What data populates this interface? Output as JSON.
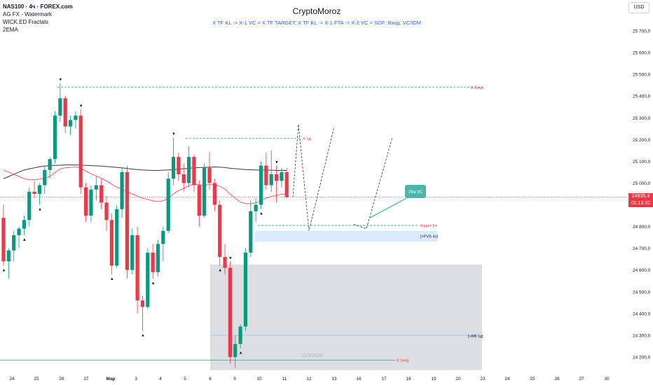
{
  "legend": {
    "symbol": "NAS100 · 4ч · FOREX.com",
    "lines": [
      "AG FX - Watermark",
      "WICK.ED Fractals",
      "2EMA"
    ]
  },
  "header": {
    "title": "CryptoMoroz",
    "subtitle": "X TF KL -> X-1 VC = X TF TARGET; X TF KL -> X-1 FTA -> X-2 VC = SOF; Вход: VC/IDM"
  },
  "currency_button": "USD",
  "price_tag": {
    "price": "24935,4",
    "timer": "01:13:32",
    "color": "#f23645"
  },
  "annotations": {
    "week_high": "X 1нед",
    "day_high": "X 1д",
    "trigger": "trigger 1ч",
    "fvg": "[+FVG 4ч]",
    "rb": "[+RB 1д]",
    "week_low": "X 1нед",
    "callout": "15м VC",
    "watermark_date": "11/3/2026"
  },
  "colors": {
    "up": "#089981",
    "down": "#f23645",
    "ema_long": "#363a45",
    "ema_short": "#f23645",
    "zone": "#787b86",
    "fvg": "#bbd9fb",
    "callout": "#4db6ac"
  },
  "chart_data": {
    "type": "candlestick",
    "symbol": "NAS100",
    "timeframe": "4h",
    "y_axis": {
      "ticks": [
        25700,
        25600,
        25500,
        25400,
        25300,
        25200,
        25100,
        25000,
        24900,
        24800,
        24700,
        24600,
        24500,
        24400,
        24300,
        24200
      ],
      "range": [
        24140,
        25790
      ],
      "decimal_separator": ","
    },
    "x_axis": {
      "ticks": [
        "24",
        "25",
        "26",
        "27",
        "Мар",
        "3",
        "4",
        "5",
        "6",
        "9",
        "10",
        "11",
        "12",
        "13",
        "16",
        "17",
        "18",
        "19",
        "20",
        "23",
        "24",
        "25",
        "26",
        "27",
        "30"
      ]
    },
    "candles": [
      [
        24840,
        24900,
        24620,
        24640
      ],
      [
        24640,
        24700,
        24560,
        24690
      ],
      [
        24690,
        24780,
        24640,
        24760
      ],
      [
        24760,
        24800,
        24700,
        24790
      ],
      [
        24790,
        24850,
        24760,
        24830
      ],
      [
        24830,
        24980,
        24800,
        24960
      ],
      [
        24960,
        25010,
        24930,
        24950
      ],
      [
        24950,
        25000,
        24900,
        24990
      ],
      [
        24990,
        25080,
        24950,
        25060
      ],
      [
        25060,
        25120,
        25020,
        25110
      ],
      [
        25110,
        25330,
        25090,
        25310
      ],
      [
        25310,
        25460,
        25280,
        25390
      ],
      [
        25390,
        25400,
        25230,
        25260
      ],
      [
        25260,
        25310,
        25220,
        25290
      ],
      [
        25290,
        25330,
        25250,
        25310
      ],
      [
        25310,
        25340,
        24950,
        24980
      ],
      [
        24980,
        25000,
        24820,
        24850
      ],
      [
        24850,
        24990,
        24820,
        24970
      ],
      [
        24970,
        25030,
        24920,
        24990
      ],
      [
        24990,
        25020,
        24880,
        24910
      ],
      [
        24910,
        24940,
        24780,
        24830
      ],
      [
        24830,
        24860,
        24580,
        24620
      ],
      [
        24620,
        24900,
        24610,
        24880
      ],
      [
        24880,
        25070,
        24840,
        25050
      ],
      [
        25050,
        25080,
        24560,
        24600
      ],
      [
        24600,
        24790,
        24580,
        24760
      ],
      [
        24760,
        24800,
        24400,
        24460
      ],
      [
        24460,
        24480,
        24320,
        24430
      ],
      [
        24430,
        24700,
        24420,
        24680
      ],
      [
        24680,
        24720,
        24560,
        24590
      ],
      [
        24590,
        24740,
        24570,
        24720
      ],
      [
        24720,
        24800,
        24640,
        24780
      ],
      [
        24780,
        25050,
        24770,
        25020
      ],
      [
        25020,
        25210,
        24990,
        25120
      ],
      [
        25120,
        25140,
        25010,
        25040
      ],
      [
        25040,
        25090,
        24960,
        25000
      ],
      [
        25000,
        25170,
        24980,
        25120
      ],
      [
        25120,
        25130,
        24960,
        24990
      ],
      [
        24990,
        25010,
        24800,
        24850
      ],
      [
        24850,
        25090,
        24840,
        25070
      ],
      [
        25070,
        25140,
        24970,
        25000
      ],
      [
        25000,
        25020,
        24870,
        24900
      ],
      [
        24900,
        24920,
        24620,
        24660
      ],
      [
        24660,
        24720,
        24580,
        24610
      ],
      [
        24610,
        24640,
        24170,
        24200
      ],
      [
        24200,
        24300,
        24150,
        24260
      ],
      [
        24260,
        24350,
        24240,
        24340
      ],
      [
        24340,
        24700,
        24320,
        24680
      ],
      [
        24680,
        24920,
        24660,
        24870
      ],
      [
        24870,
        24930,
        24820,
        24900
      ],
      [
        24900,
        25100,
        24880,
        25080
      ],
      [
        25080,
        25140,
        24970,
        24990
      ],
      [
        24990,
        25150,
        24960,
        25040
      ],
      [
        25040,
        25080,
        24910,
        25010
      ],
      [
        25010,
        25070,
        24980,
        25050
      ],
      [
        25050,
        25070,
        24930,
        24935
      ]
    ],
    "ema_long": [
      25020,
      25030,
      25040,
      25050,
      25060,
      25065,
      25070,
      25075,
      25078,
      25080,
      25081,
      25082,
      25083,
      25083,
      25083,
      25082,
      25081,
      25080,
      25079,
      25078,
      25076,
      25074,
      25072,
      25070,
      25067,
      25064,
      25062,
      25060,
      25059,
      25058,
      25058,
      25059,
      25060,
      25062,
      25064,
      25066,
      25068,
      25070,
      25071,
      25072,
      25073,
      25074,
      25073,
      25071,
      25068,
      25066,
      25064,
      25062,
      25061,
      25060,
      25060,
      25060,
      25059,
      25058,
      25058,
      25058
    ],
    "ema_short": [
      25060,
      25050,
      25040,
      25030,
      25020,
      25015,
      25015,
      25018,
      25022,
      25030,
      25048,
      25065,
      25070,
      25072,
      25074,
      25068,
      25055,
      25042,
      25032,
      25022,
      25010,
      24995,
      24980,
      24972,
      24960,
      24950,
      24940,
      24930,
      24925,
      24918,
      24915,
      24918,
      24930,
      24950,
      24965,
      24975,
      24988,
      24995,
      24992,
      24990,
      24993,
      24992,
      24985,
      24972,
      24950,
      24930,
      24912,
      24905,
      24905,
      24908,
      24920,
      24930,
      24938,
      24944,
      24948,
      24950
    ],
    "projection": [
      [
        24935,
        24780,
        25270,
        24790,
        25240
      ]
    ],
    "levels": [
      {
        "label": "X 1нед",
        "price": 25440
      },
      {
        "label": "X 1д",
        "price": 25205
      },
      {
        "label": "trigger 1ч",
        "price": 24805
      },
      {
        "label": "X 1нед",
        "price": 24185
      }
    ],
    "zones": [
      {
        "label": "[+FVG 4ч]",
        "from": 24730,
        "to": 24780
      },
      {
        "label": "[+RB 1д]",
        "from": 24140,
        "to": 24625
      }
    ],
    "last_price": 24935.4
  }
}
